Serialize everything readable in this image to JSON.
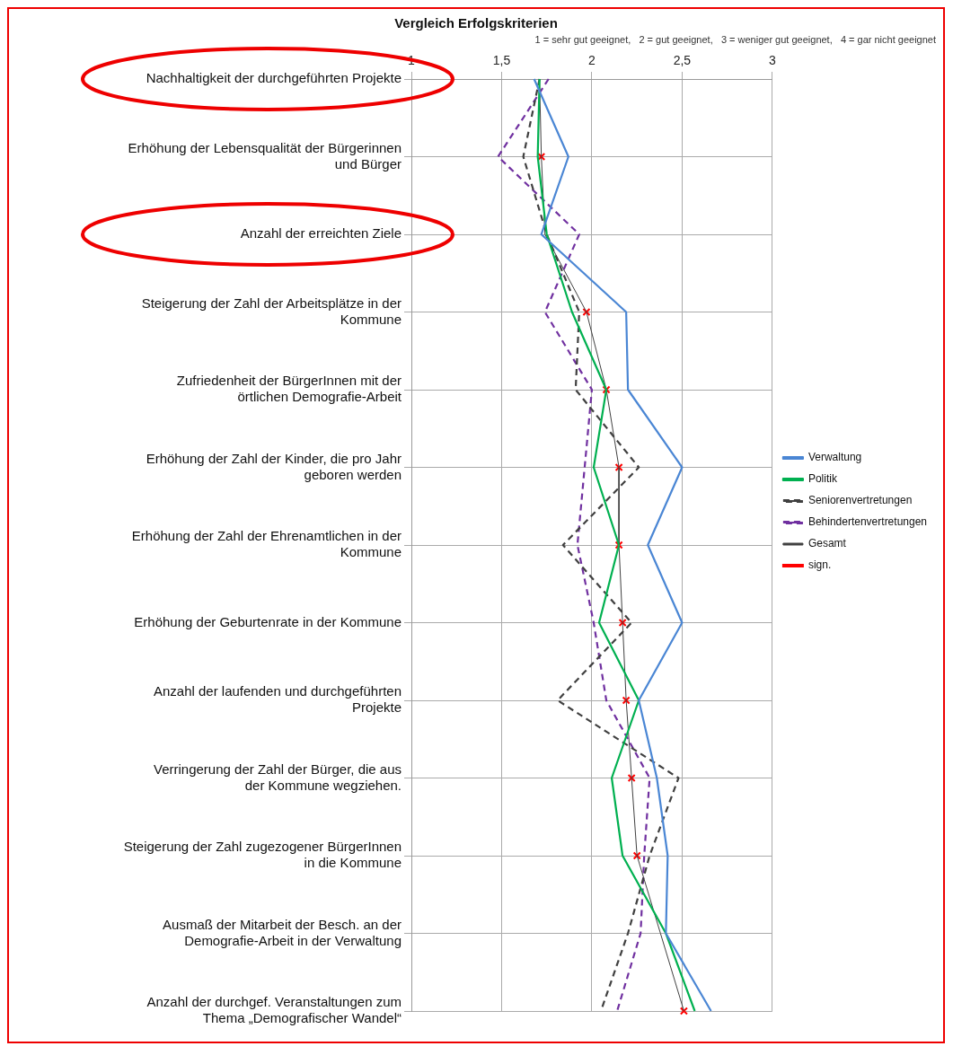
{
  "chart_data": {
    "type": "line",
    "orientation": "horizontal",
    "title": "Vergleich Erfolgskriterien",
    "subtitle": "1 = sehr gut geeignet,   2 = gut geeignet,   3 = weniger gut geeignet,   4 = gar nicht geeignet",
    "categories": [
      "Nachhaltigkeit der durchgeführten Projekte",
      "Erhöhung der Lebensqualität der Bürgerinnen und Bürger",
      "Anzahl der erreichten Ziele",
      "Steigerung der Zahl der Arbeitsplätze in der Kommune",
      "Zufriedenheit der BürgerInnen mit der örtlichen Demografie-Arbeit",
      "Erhöhung der Zahl der Kinder, die pro Jahr geboren werden",
      "Erhöhung der Zahl der Ehrenamtlichen in der Kommune",
      "Erhöhung der Geburtenrate in der Kommune",
      "Anzahl der laufenden und durchgeführten Projekte",
      "Verringerung der Zahl der Bürger, die aus der Kommune wegziehen.",
      "Steigerung der Zahl zugezogener BürgerInnen in die Kommune",
      "Ausmaß der Mitarbeit der Besch. an der Demografie-Arbeit in der Verwaltung",
      "Anzahl der durchgef. Veranstaltungen zum Thema „Demografischer Wandel“"
    ],
    "series": [
      {
        "name": "Verwaltung",
        "color": "#4a86d4",
        "line_style": "solid",
        "marker": "none",
        "values": [
          1.68,
          1.87,
          1.72,
          2.19,
          2.2,
          2.5,
          2.31,
          2.5,
          2.26,
          2.36,
          2.42,
          2.41,
          2.66
        ]
      },
      {
        "name": "Politik",
        "color": "#00b050",
        "line_style": "solid",
        "marker": "none",
        "values": [
          1.71,
          1.7,
          1.75,
          1.89,
          2.08,
          2.01,
          2.15,
          2.04,
          2.26,
          2.11,
          2.17,
          2.41,
          2.57
        ]
      },
      {
        "name": "Seniorenvertretungen",
        "color": "#404040",
        "line_style": "dashed",
        "marker": "none",
        "values": [
          1.71,
          1.62,
          1.75,
          1.93,
          1.91,
          2.26,
          1.84,
          2.22,
          1.81,
          2.48,
          2.32,
          2.2,
          2.05
        ]
      },
      {
        "name": "Behindertenvertretungen",
        "color": "#7030a0",
        "line_style": "dashed",
        "marker": "none",
        "values": [
          1.76,
          1.48,
          1.93,
          1.74,
          2.0,
          1.96,
          1.92,
          2.01,
          2.08,
          2.32,
          2.29,
          2.27,
          2.14
        ]
      },
      {
        "name": "Gesamt",
        "color": "#404040",
        "line_style": "solid",
        "marker": "none",
        "values": [
          1.71,
          1.72,
          1.74,
          1.97,
          2.08,
          2.15,
          2.15,
          2.17,
          2.19,
          2.22,
          2.25,
          2.38,
          2.51
        ]
      },
      {
        "name": "sign.",
        "type": "scatter",
        "color": "#ff0000",
        "marker": "cross",
        "values": [
          null,
          1.72,
          null,
          1.97,
          2.08,
          2.15,
          2.15,
          2.17,
          2.19,
          2.22,
          2.25,
          null,
          2.51
        ]
      }
    ],
    "xlim": [
      1,
      3
    ],
    "xticks": [
      1,
      {
        "value": 1.5,
        "label": "1,5"
      },
      2,
      {
        "value": 2.5,
        "label": "2,5"
      },
      3
    ],
    "grid": true,
    "legend": "right"
  }
}
